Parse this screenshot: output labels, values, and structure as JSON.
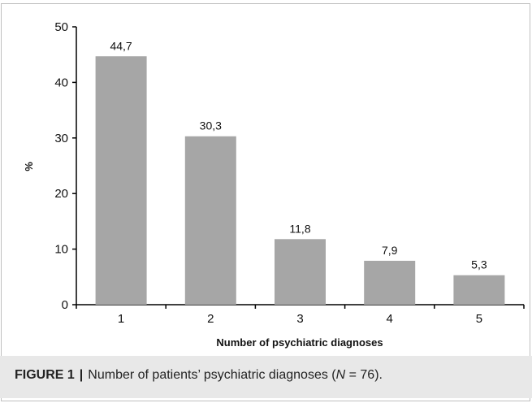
{
  "chart_data": {
    "type": "bar",
    "categories": [
      "1",
      "2",
      "3",
      "4",
      "5"
    ],
    "values": [
      44.7,
      30.3,
      11.8,
      7.9,
      5.3
    ],
    "data_labels": [
      "44,7",
      "30,3",
      "11,8",
      "7,9",
      "5,3"
    ],
    "xlabel": "Number of psychiatric diagnoses",
    "ylabel": "%",
    "ylim": [
      0,
      50
    ],
    "yticks": [
      0,
      10,
      20,
      30,
      40,
      50
    ],
    "grid": false,
    "bar_color": "#a6a6a6"
  },
  "caption": {
    "figure_label": "FIGURE 1",
    "separator": "|",
    "text_before": "Number of patients’ psychiatric diagnoses (",
    "italic": "N",
    "text_after": " = 76)."
  }
}
